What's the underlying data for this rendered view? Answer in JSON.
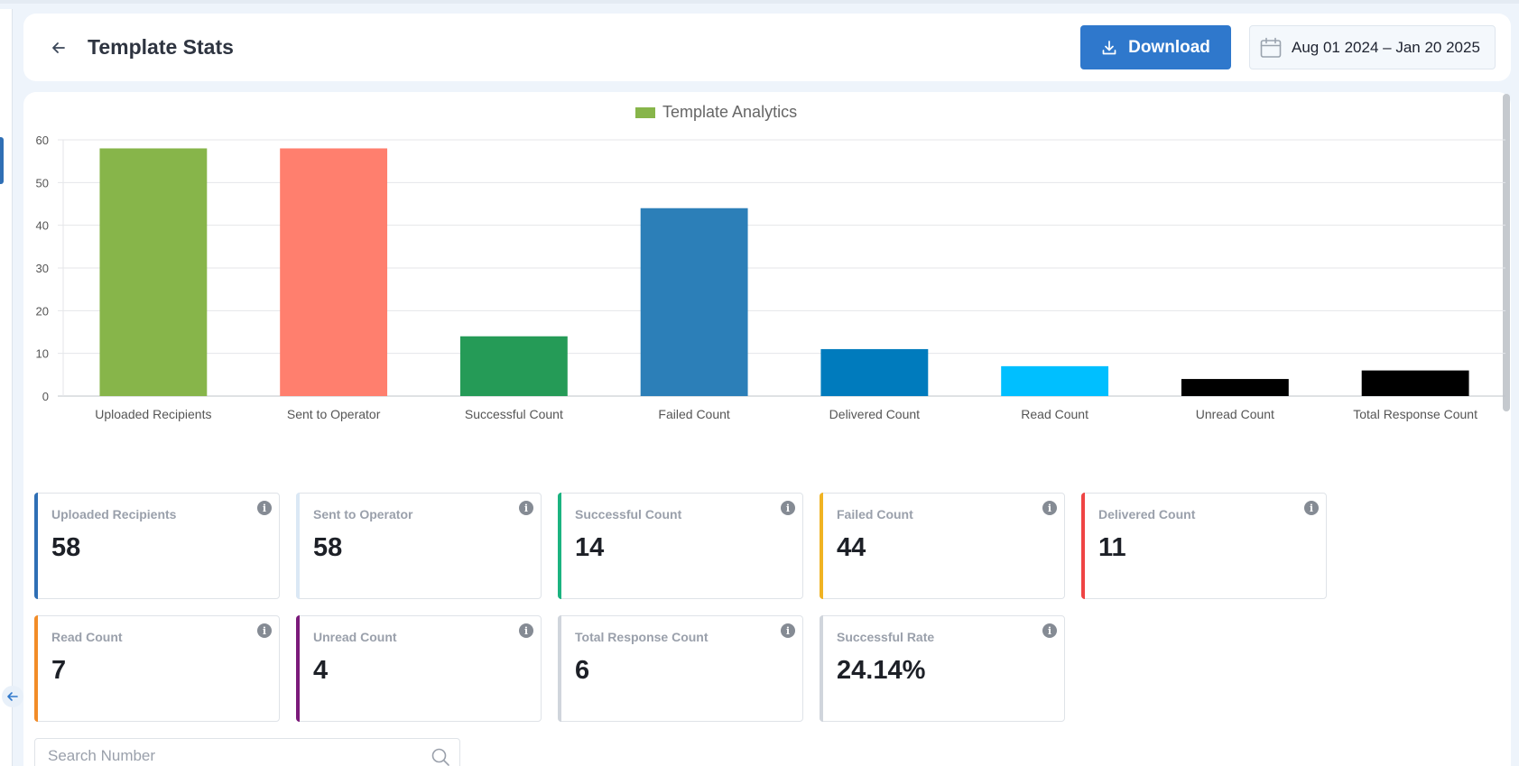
{
  "header": {
    "title": "Template Stats",
    "download_label": "Download",
    "date_range": "Aug 01 2024 – Jan 20 2025"
  },
  "chart_data": {
    "type": "bar",
    "legend": "Template Analytics",
    "legend_position": "top-center",
    "categories": [
      "Uploaded Recipients",
      "Sent to Operator",
      "Successful Count",
      "Failed Count",
      "Delivered Count",
      "Read Count",
      "Unread Count",
      "Total Response Count"
    ],
    "values": [
      58,
      58,
      14,
      44,
      11,
      7,
      4,
      6
    ],
    "colors": [
      "#87b54a",
      "#ff7f6e",
      "#259b57",
      "#2c7fb8",
      "#007bbd",
      "#00bfff",
      "#000000",
      "#000000"
    ],
    "legend_color": "#87b54a",
    "ylim": [
      0,
      60
    ],
    "yticks": [
      0,
      10,
      20,
      30,
      40,
      50,
      60
    ],
    "grid": true
  },
  "stats": [
    {
      "label": "Uploaded Recipients",
      "value": "58",
      "color": "#2f6fb5"
    },
    {
      "label": "Sent to Operator",
      "value": "58",
      "color": "#dbe8f5"
    },
    {
      "label": "Successful Count",
      "value": "14",
      "color": "#1bb380"
    },
    {
      "label": "Failed Count",
      "value": "44",
      "color": "#f0b323"
    },
    {
      "label": "Delivered Count",
      "value": "11",
      "color": "#ef4444"
    },
    {
      "label": "Read Count",
      "value": "7",
      "color": "#f28c28"
    },
    {
      "label": "Unread Count",
      "value": "4",
      "color": "#7b1a7a"
    },
    {
      "label": "Total Response Count",
      "value": "6",
      "color": "#d0d5dc"
    },
    {
      "label": "Successful Rate",
      "value": "24.14%",
      "color": "#d0d5dc"
    }
  ],
  "search": {
    "placeholder": "Search Number"
  }
}
